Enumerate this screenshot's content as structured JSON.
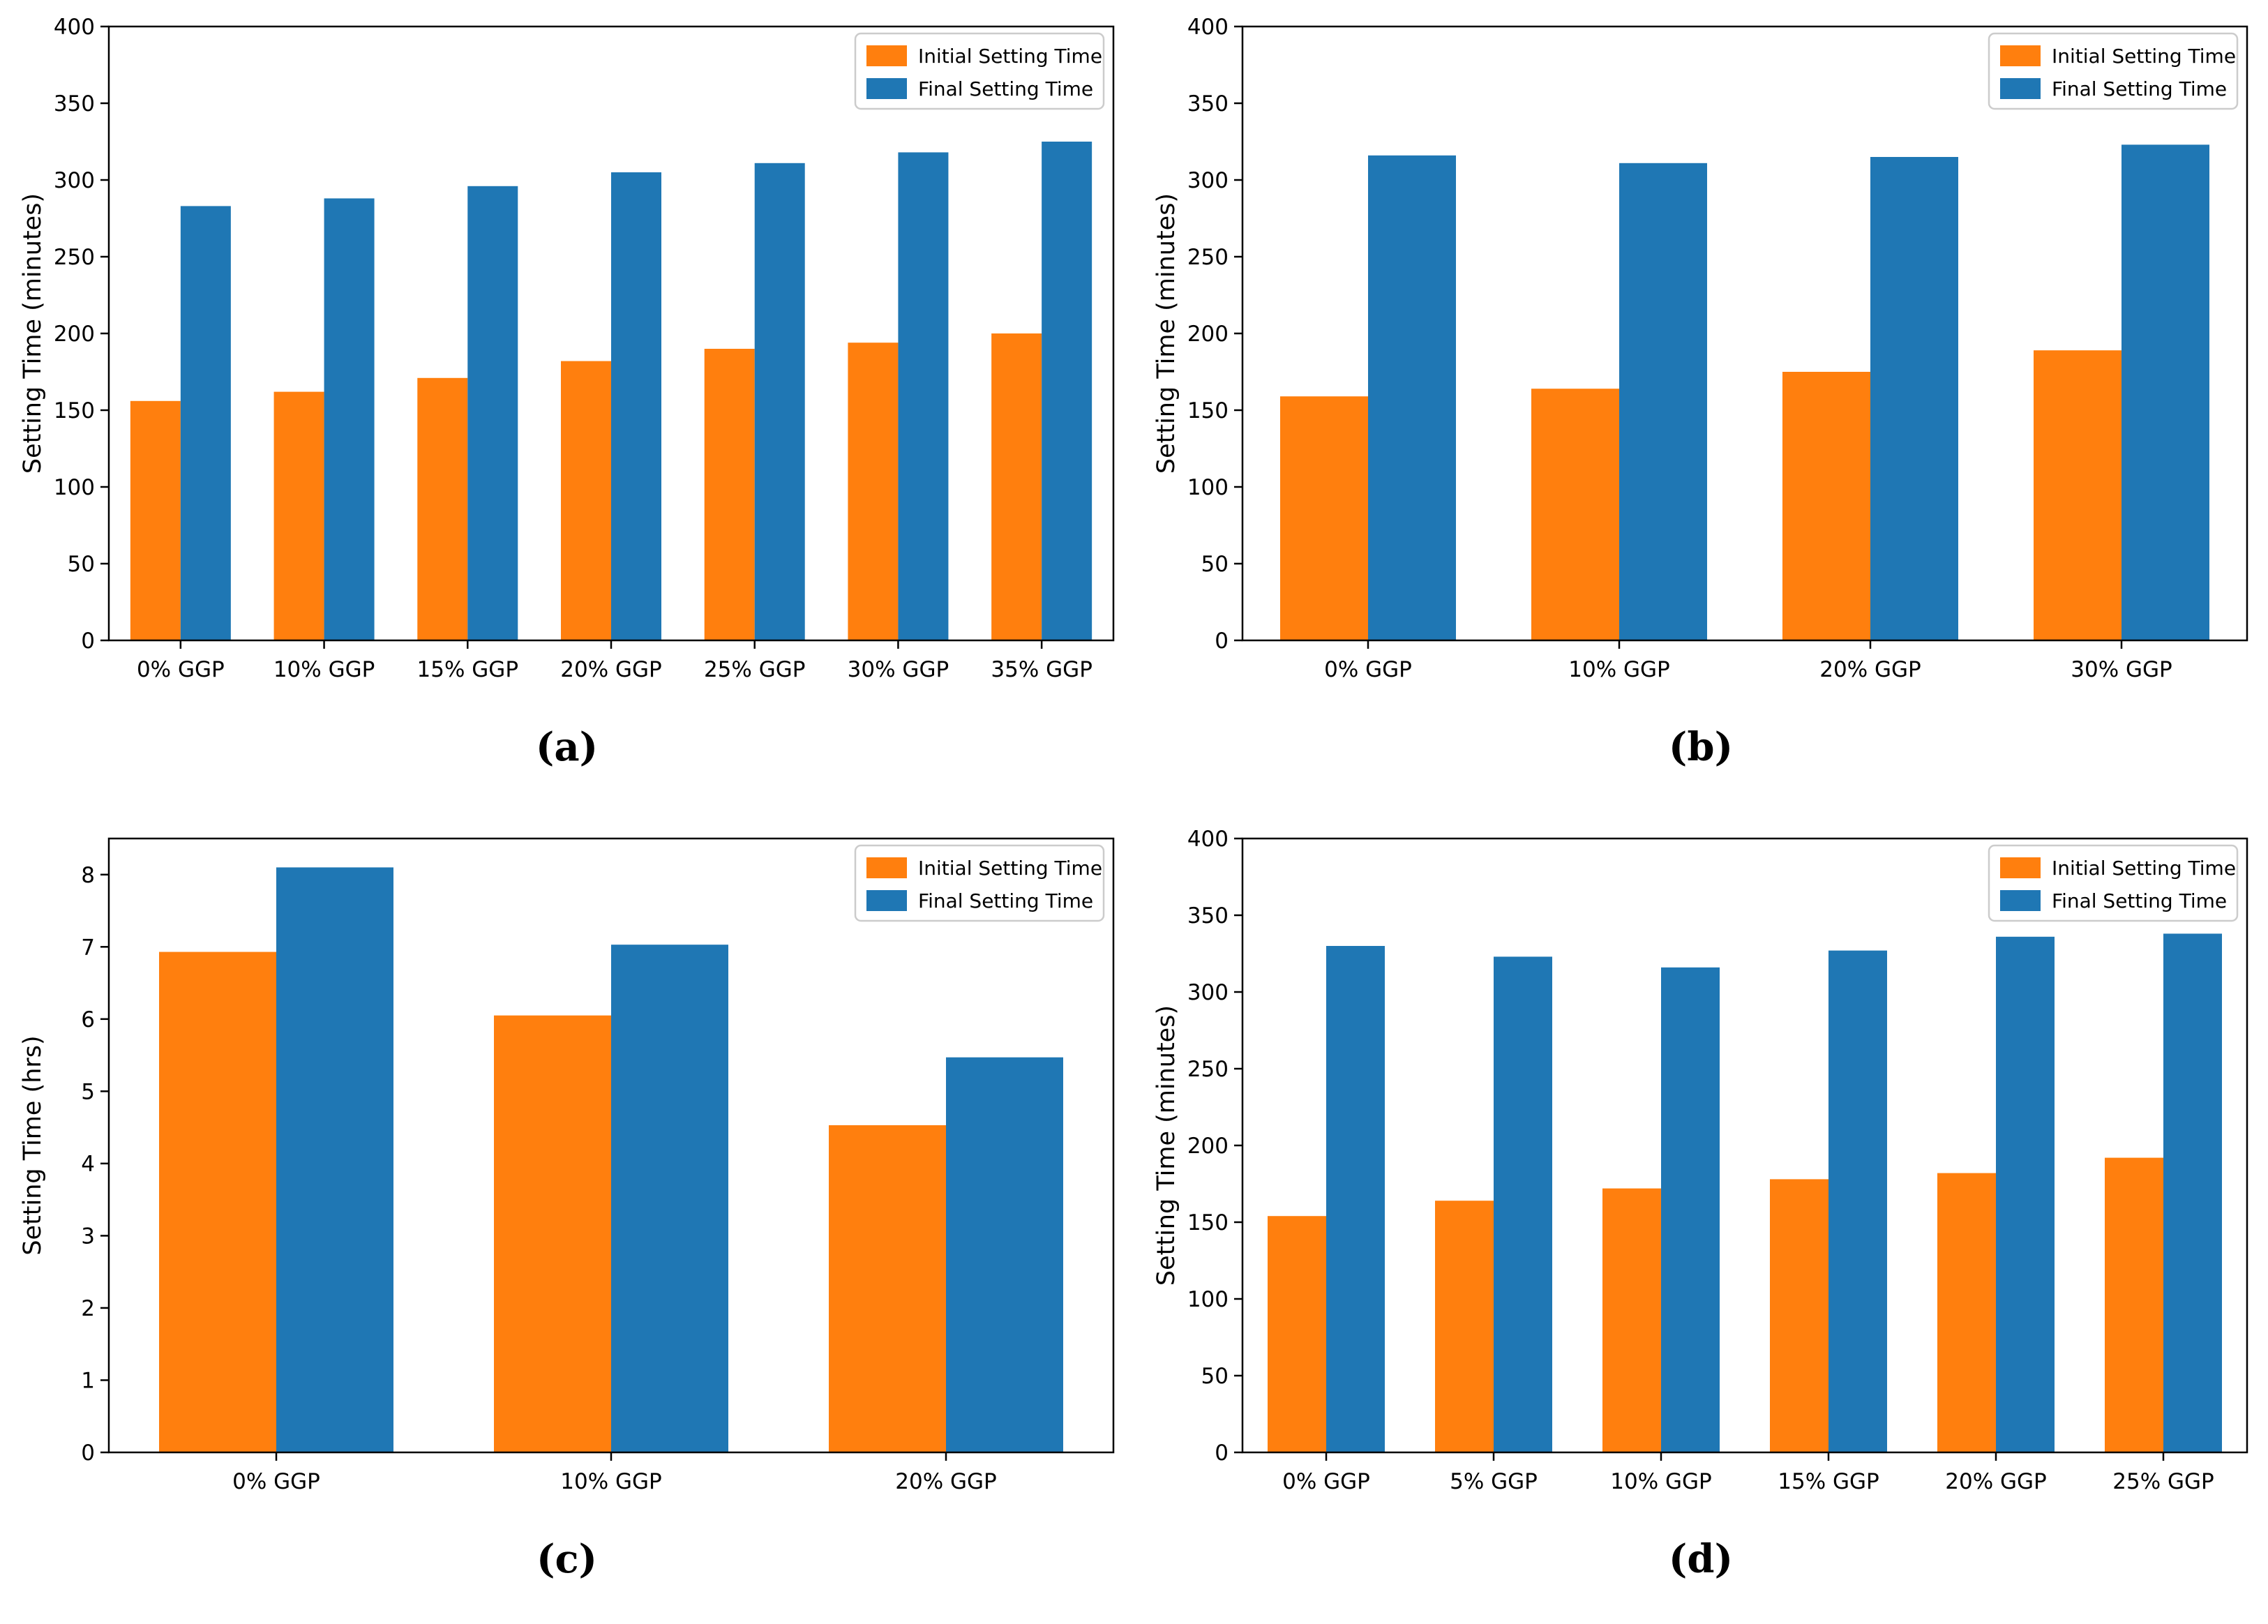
{
  "figure": {
    "legend": {
      "initial_label": "Initial Setting Time",
      "final_label": "Final Setting Time"
    },
    "colors": {
      "initial": "#ff7f0e",
      "final": "#1f77b4",
      "axis": "#000000",
      "legend_border": "#cccccc",
      "background": "#ffffff"
    }
  },
  "chart_data": [
    {
      "id": "a",
      "caption": "(a)",
      "type": "bar",
      "title": "",
      "xlabel": "",
      "ylabel": "Setting Time (minutes)",
      "ylim": [
        0,
        400
      ],
      "yticks": [
        0,
        50,
        100,
        150,
        200,
        250,
        300,
        350,
        400
      ],
      "grid": false,
      "legend_position": "upper right",
      "categories": [
        "0% GGP",
        "10% GGP",
        "15% GGP",
        "20% GGP",
        "25% GGP",
        "30% GGP",
        "35% GGP"
      ],
      "series": [
        {
          "name": "Initial Setting Time",
          "color": "#ff7f0e",
          "values": [
            156,
            162,
            171,
            182,
            190,
            194,
            200
          ]
        },
        {
          "name": "Final Setting Time",
          "color": "#1f77b4",
          "values": [
            283,
            288,
            296,
            305,
            311,
            318,
            325
          ]
        }
      ]
    },
    {
      "id": "b",
      "caption": "(b)",
      "type": "bar",
      "title": "",
      "xlabel": "",
      "ylabel": "Setting Time (minutes)",
      "ylim": [
        0,
        400
      ],
      "yticks": [
        0,
        50,
        100,
        150,
        200,
        250,
        300,
        350,
        400
      ],
      "grid": false,
      "legend_position": "upper right",
      "categories": [
        "0% GGP",
        "10% GGP",
        "20% GGP",
        "30% GGP"
      ],
      "series": [
        {
          "name": "Initial Setting Time",
          "color": "#ff7f0e",
          "values": [
            159,
            164,
            175,
            189
          ]
        },
        {
          "name": "Final Setting Time",
          "color": "#1f77b4",
          "values": [
            316,
            311,
            315,
            323
          ]
        }
      ]
    },
    {
      "id": "c",
      "caption": "(c)",
      "type": "bar",
      "title": "",
      "xlabel": "",
      "ylabel": "Setting Time (hrs)",
      "ylim": [
        0,
        8.5
      ],
      "yticks": [
        0,
        1,
        2,
        3,
        4,
        5,
        6,
        7,
        8
      ],
      "grid": false,
      "legend_position": "upper right",
      "categories": [
        "0% GGP",
        "10% GGP",
        "20% GGP"
      ],
      "series": [
        {
          "name": "Initial Setting Time",
          "color": "#ff7f0e",
          "values": [
            6.93,
            6.05,
            4.53
          ]
        },
        {
          "name": "Final Setting Time",
          "color": "#1f77b4",
          "values": [
            8.1,
            7.03,
            5.47
          ]
        }
      ]
    },
    {
      "id": "d",
      "caption": "(d)",
      "type": "bar",
      "title": "",
      "xlabel": "",
      "ylabel": "Setting Time (minutes)",
      "ylim": [
        0,
        400
      ],
      "yticks": [
        0,
        50,
        100,
        150,
        200,
        250,
        300,
        350,
        400
      ],
      "grid": false,
      "legend_position": "upper right",
      "categories": [
        "0% GGP",
        "5% GGP",
        "10% GGP",
        "15% GGP",
        "20% GGP",
        "25% GGP"
      ],
      "series": [
        {
          "name": "Initial Setting Time",
          "color": "#ff7f0e",
          "values": [
            154,
            164,
            172,
            178,
            182,
            192
          ]
        },
        {
          "name": "Final Setting Time",
          "color": "#1f77b4",
          "values": [
            330,
            323,
            316,
            327,
            336,
            338
          ]
        }
      ]
    }
  ]
}
